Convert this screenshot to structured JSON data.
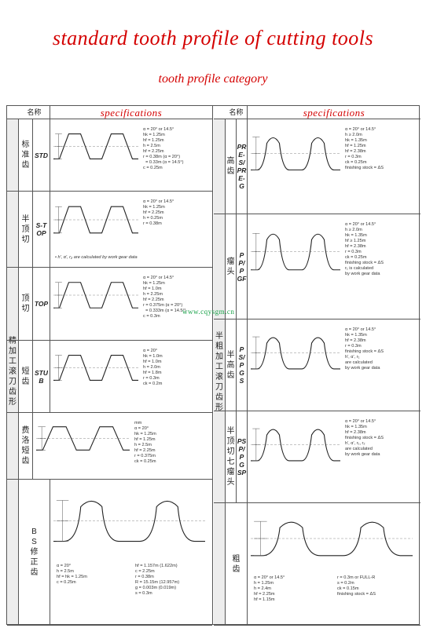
{
  "header": {
    "title": "standard tooth profile of cutting tools",
    "subtitle": "tooth profile category"
  },
  "watermark": "www.cqysgm.cn",
  "table": {
    "name_header": "名称",
    "spec_header": "specifications",
    "left": {
      "group_label": "精加工滚刀齿形",
      "rows": [
        {
          "name": "标准齿",
          "code": "STD",
          "params": "α = 20° or 14.5°\nhk = 1.25m\nhf = 1.25m\nh = 2.5m\nhf = 2.25m\nr = 0.38m (α = 20°)\n  = 0.33m (α = 14.5°)\nc = 0.25m",
          "note": ""
        },
        {
          "name": "半顶切",
          "code": "S-TOP",
          "params": "α = 20° or 14.5°\nhk = 1.25m\nhf = 2.25m\nh = 0.25m\nr = 0.38m",
          "note": "• h', α', r₂ are calculated by work gear data"
        },
        {
          "name": "顶切",
          "code": "TOP",
          "params": "α = 20° or 14.5°\nhk = 1.25m\nhf = 1.0m\nh = 2.25m\nhf = 2.25m\nr = 0.375m (α = 20°)\n  = 0.333m (α = 14.5°)\nc = 0.3m",
          "note": ""
        },
        {
          "name": "短齿",
          "code": "STUB",
          "params": "α = 20°\nhk = 1.0m\nhf = 1.0m\nh = 2.0m\nhf = 1.8m\nr = 0.3m\nck = 0.2m",
          "note": ""
        },
        {
          "name": "费洛短齿",
          "code": "",
          "params": "mm\nα = 20°\nhk = 1.25m\nhf = 1.25m\nh = 2.5m\nhf = 2.25m\nr = 0.375m\nck = 0.25m",
          "note": ""
        },
        {
          "name": "BS修正齿",
          "code": "",
          "params": "α = 20°\nh = 2.5m\nhf = hk = 1.25m\nc = 0.25m",
          "params2": "hf = 1.157m (1.622m)\nc = 2.25m\nr = 0.38m\nR = 15.15m (12.957m)\ng = 0.003m (0.019m)\ns = 0.3m",
          "note": ""
        }
      ]
    },
    "right": {
      "group_label": "半粗加工滚刀齿形",
      "rows": [
        {
          "name": "高齿",
          "code": "PRE-S/PRE-G",
          "params": "α = 20° or 14.5°\nh ≥ 2.0m\nhk = 1.35m\nhf = 1.25m\nhf = 2.38m\nr = 0.3m\nck = 0.25m\nfinishing stock = ΔS",
          "note": ""
        },
        {
          "name": "瘤头",
          "code": "PP/PGF",
          "params": "α = 20° or 14.5°\nh ≥ 2.0m\nhk = 1.35m\nhf ≥ 1.25m\nhf = 2.38m\nr = 0.3m\nck = 0.25m\nfinishing stock = ΔS\nr₁ is calculated\nby work gear data",
          "note": ""
        },
        {
          "name": "半高齿",
          "code": "PS/PGS",
          "params": "α = 20° or 14.5°\nhk = 1.35m\nhf = 2.38m\nr = 0.3m\nfinishing stock = ΔS\nh', α', r₁\nare calculated\nby work gear data",
          "note": ""
        },
        {
          "name": "半顶切七瘤头",
          "code": "PSP/PGSP",
          "params": "α = 20° or 14.5°\nhk = 1.35m\nhf = 2.38m\nfinishing stock = ΔS\nh', α', r₁, r₂\nare calculated\nby work gear data",
          "note": ""
        },
        {
          "name": "粗齿",
          "code": "",
          "params": "α = 20° or 14.5°\nh = 1.25m\nh = 2.4m\nhf = 2.25m\nhf = 1.15m",
          "params2": "r = 0.3m or FULL-R\ns = 0.2m\nck = 0.15m\nfinishing stock = ΔS",
          "note": ""
        }
      ]
    }
  }
}
